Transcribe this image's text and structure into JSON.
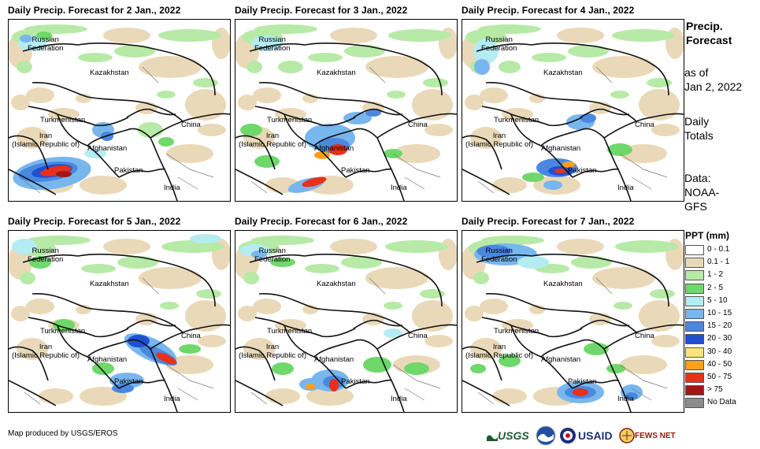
{
  "panels": [
    {
      "title": "Daily Precip. Forecast for 2 Jan., 2022",
      "day": 2
    },
    {
      "title": "Daily Precip. Forecast for 3 Jan., 2022",
      "day": 3
    },
    {
      "title": "Daily Precip. Forecast for 4 Jan., 2022",
      "day": 4
    },
    {
      "title": "Daily Precip. Forecast for 5 Jan., 2022",
      "day": 5
    },
    {
      "title": "Daily Precip. Forecast for 6 Jan., 2022",
      "day": 6
    },
    {
      "title": "Daily Precip. Forecast for 7 Jan., 2022",
      "day": 7
    }
  ],
  "map_labels": {
    "russia_line1": "Russian",
    "russia_line2": "Federation",
    "kazakhstan": "Kazakhstan",
    "turkmenistan": "Turkmenistan",
    "china": "China",
    "iran_line1": "Iran",
    "iran_line2": "(Islamic Republic of)",
    "afghanistan": "Afghanistan",
    "pakistan": "Pakistan",
    "india": "India"
  },
  "sidebar": {
    "title_line1": "Precip.",
    "title_line2": "Forecast",
    "asof_line1": "as of",
    "asof_line2": "Jan 2, 2022",
    "totals_line1": "Daily",
    "totals_line2": "Totals",
    "data_line1": "Data:",
    "data_line2": "NOAA-",
    "data_line3": "GFS"
  },
  "legend": {
    "title": "PPT (mm)",
    "items": [
      {
        "label": "0 - 0.1",
        "color": "#ffffff"
      },
      {
        "label": "0.1 - 1",
        "color": "#ead9b8"
      },
      {
        "label": "1 - 2",
        "color": "#b6eaa6"
      },
      {
        "label": "2 - 5",
        "color": "#6ed86a"
      },
      {
        "label": "5 - 10",
        "color": "#b4ecf2"
      },
      {
        "label": "10 - 15",
        "color": "#78b6ee"
      },
      {
        "label": "15 - 20",
        "color": "#4a88e0"
      },
      {
        "label": "20 - 30",
        "color": "#1f4fd2"
      },
      {
        "label": "30 - 40",
        "color": "#ffe37a"
      },
      {
        "label": "40 - 50",
        "color": "#ff9f1c"
      },
      {
        "label": "50 - 75",
        "color": "#e8301a"
      },
      {
        "label": "> 75",
        "color": "#a31616"
      },
      {
        "label": "No Data",
        "color": "#8c8c8c"
      }
    ]
  },
  "footer": {
    "credit": "Map produced by USGS/EROS"
  },
  "logos": {
    "usgs": "USGS",
    "usaid": "USAID",
    "fews": "FEWS NET"
  }
}
